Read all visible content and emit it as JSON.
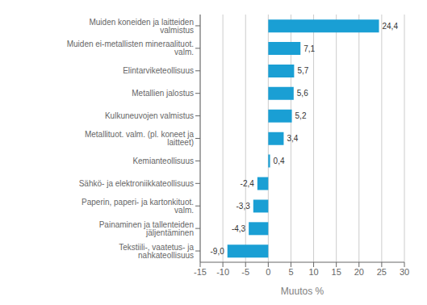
{
  "chart_data": {
    "type": "bar",
    "orientation": "horizontal",
    "categories": [
      "Tekstiili-, vaatetus- ja nahkateollisuus",
      "Painaminen ja tallenteiden jäljentäminen",
      "Paperin, paperi- ja kartonkituot. valm.",
      "Sähkö- ja elektroniikkateollisuus",
      "Kemianteollisuus",
      "Metallituot. valm. (pl. koneet ja laitteet)",
      "Kulkuneuvojen valmistus",
      "Metallien jalostus",
      "Elintarviketeollisuus",
      "Muiden ei-metallisten mineraalituot. valm.",
      "Muiden koneiden ja laitteiden valmistus"
    ],
    "values": [
      -9.0,
      -4.3,
      -3.3,
      -2.4,
      0.4,
      3.4,
      5.2,
      5.6,
      5.7,
      7.1,
      24.4
    ],
    "value_labels": [
      "-9,0",
      "-4,3",
      "-3,3",
      "-2,4",
      "0,4",
      "3,4",
      "5,2",
      "5,6",
      "5,7",
      "7,1",
      "24,4"
    ],
    "data_labels": true,
    "color": "#1a9fd4",
    "xlabel": "Muutos %",
    "xlim": [
      -15,
      30
    ],
    "xticks": [
      -15,
      -10,
      -5,
      0,
      5,
      10,
      15,
      20,
      25,
      30
    ],
    "grid": true
  }
}
